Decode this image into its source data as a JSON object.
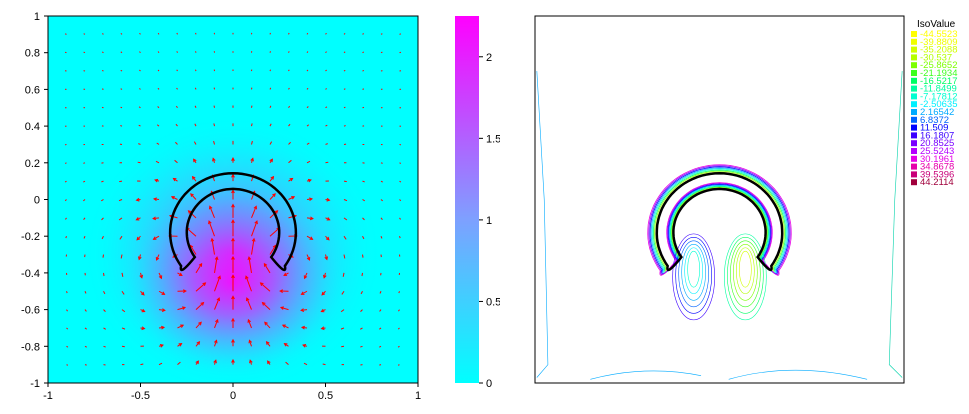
{
  "chart_data": [
    {
      "type": "heatmap",
      "title": "",
      "xlabel": "",
      "ylabel": "",
      "xlim": [
        -1,
        1
      ],
      "ylim": [
        -1,
        1
      ],
      "x_ticks": [
        "-1",
        "-0.5",
        "0",
        "0.5",
        "1"
      ],
      "x_tick_values": [
        -1,
        -0.5,
        0,
        0.5,
        1
      ],
      "y_ticks": [
        "1",
        "0.8",
        "0.6",
        "0.4",
        "0.2",
        "0",
        "-0.2",
        "-0.4",
        "-0.6",
        "-0.8",
        "-1"
      ],
      "y_tick_values": [
        1,
        0.8,
        0.6,
        0.4,
        0.2,
        0,
        -0.2,
        -0.4,
        -0.6,
        -0.8,
        -1
      ],
      "colorbar": {
        "range": [
          0,
          2.25
        ],
        "ticks": [
          "0",
          "0.5",
          "1",
          "1.5",
          "2"
        ],
        "tick_values": [
          0,
          0.5,
          1,
          1.5,
          2
        ],
        "colors": [
          "#00ffff",
          "#ff00ff"
        ]
      },
      "field_peak": {
        "x": 0,
        "y": -0.45,
        "value": 2.2
      },
      "arrow_color": "#ff0000",
      "interface_color": "#000000",
      "grid": false
    },
    {
      "type": "contour",
      "legend_title": "IsoValue",
      "legend_position": "top-right",
      "iso_values": [
        "-44.5523",
        "-39.8809",
        "-35.2088",
        "-30.537",
        "-25.8652",
        "-21.1934",
        "-16.5217",
        "-11.8499",
        "-7.17812",
        "-2.50635",
        "2.16542",
        "6.8372",
        "11.509",
        "16.1807",
        "20.8525",
        "25.5243",
        "30.1961",
        "34.8678",
        "39.5396",
        "44.2114"
      ],
      "iso_colors": [
        "#ffff00",
        "#f0ff00",
        "#d2ff00",
        "#b4ff00",
        "#7dff00",
        "#3cff1e",
        "#00ff64",
        "#00ffa0",
        "#00ffd2",
        "#00f0ff",
        "#00aaff",
        "#0064ff",
        "#0000ff",
        "#3c00ff",
        "#7800ff",
        "#b400ff",
        "#e600e6",
        "#e600aa",
        "#c80078",
        "#a0003c"
      ],
      "interface_color": "#000000"
    }
  ]
}
